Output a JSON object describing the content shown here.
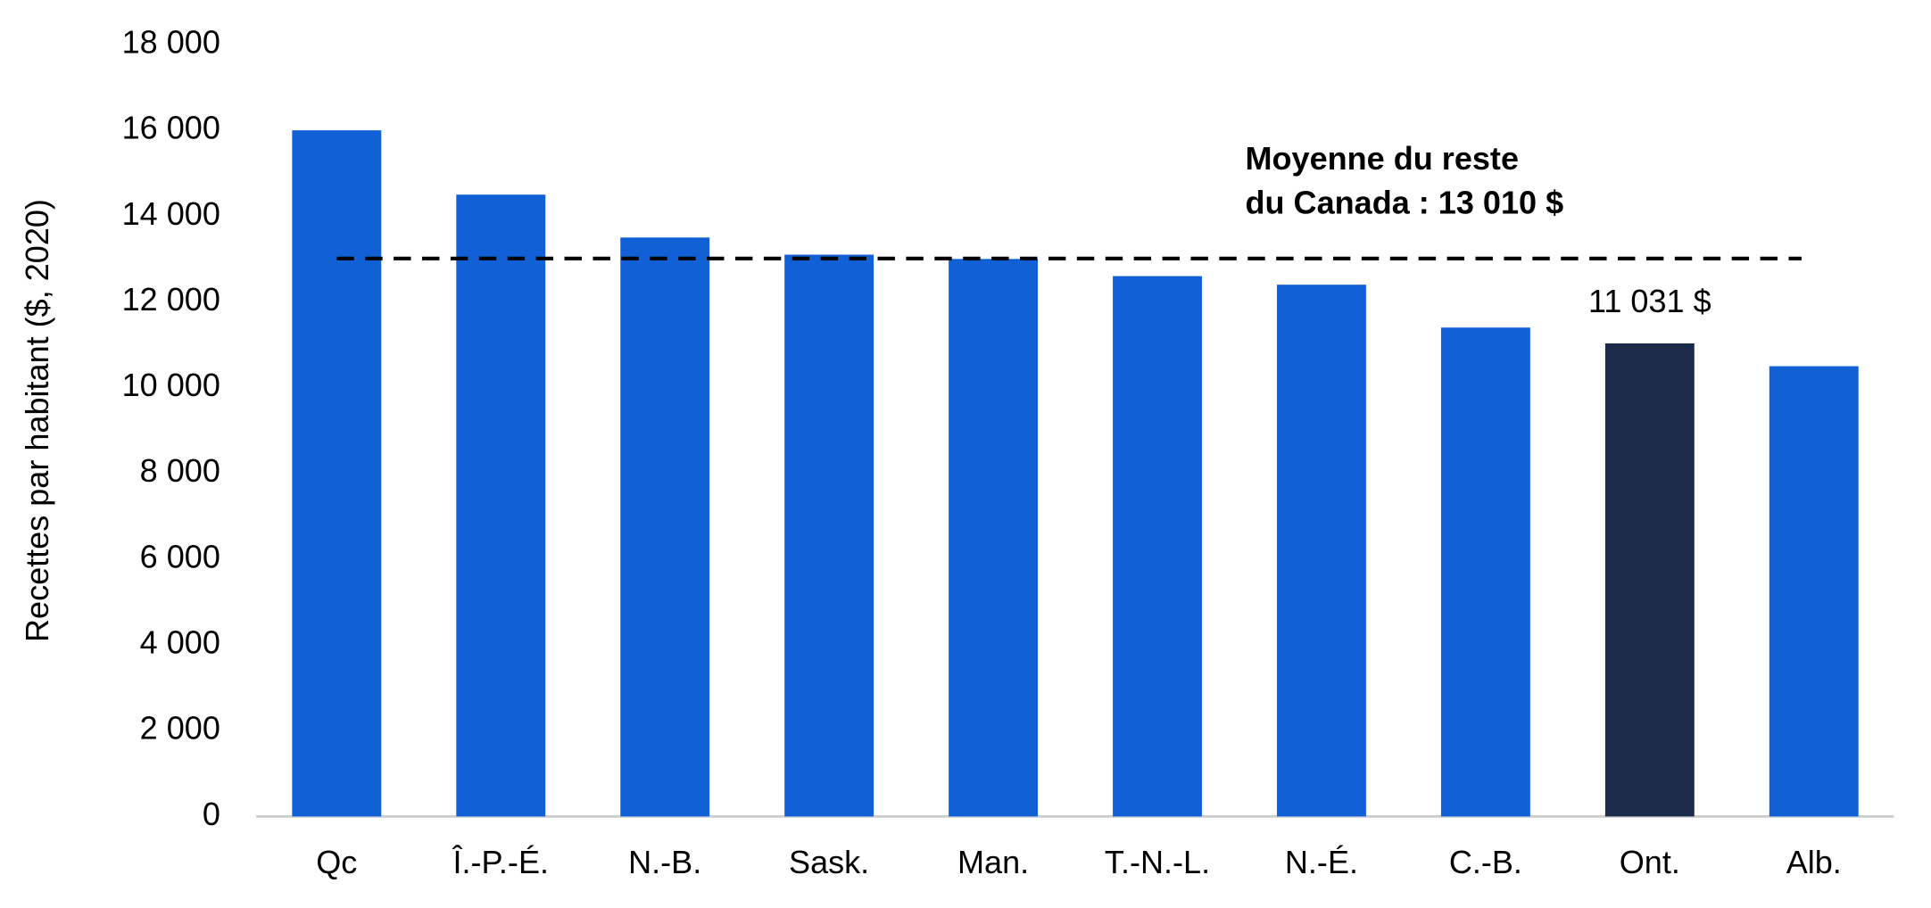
{
  "chart_data": {
    "type": "bar",
    "y_label": "Recettes par habitant ($, 2020)",
    "categories": [
      "Qc",
      "Î.-P.-É.",
      "N.-B.",
      "Sask.",
      "Man.",
      "T.-N.-L.",
      "N.-É.",
      "C.-B.",
      "Ont.",
      "Alb."
    ],
    "values": [
      16000,
      14500,
      13500,
      13100,
      13000,
      12600,
      12400,
      11400,
      11031,
      10500
    ],
    "value_labels": [
      null,
      null,
      null,
      null,
      null,
      null,
      null,
      null,
      "11 031 $",
      null
    ],
    "colors": [
      "#1160d6",
      "#1160d6",
      "#1160d6",
      "#1160d6",
      "#1160d6",
      "#1160d6",
      "#1160d6",
      "#1160d6",
      "#1c2b4a",
      "#1160d6"
    ],
    "average": 13010,
    "average_label": [
      "Moyenne du reste",
      "du Canada : 13 010 $"
    ],
    "ylim": [
      0,
      18000
    ],
    "yticks": [
      0,
      {
        "value": 2000,
        "label": "2 000"
      },
      {
        "value": 4000,
        "label": "4 000"
      },
      {
        "value": 6000,
        "label": "6 000"
      },
      {
        "value": 8000,
        "label": "8 000"
      },
      {
        "value": 10000,
        "label": "10 000"
      },
      {
        "value": 12000,
        "label": "12 000"
      },
      {
        "value": 14000,
        "label": "14 000"
      },
      {
        "value": 16000,
        "label": "16 000"
      },
      {
        "value": 18000,
        "label": "18 000"
      }
    ],
    "grid": false
  }
}
